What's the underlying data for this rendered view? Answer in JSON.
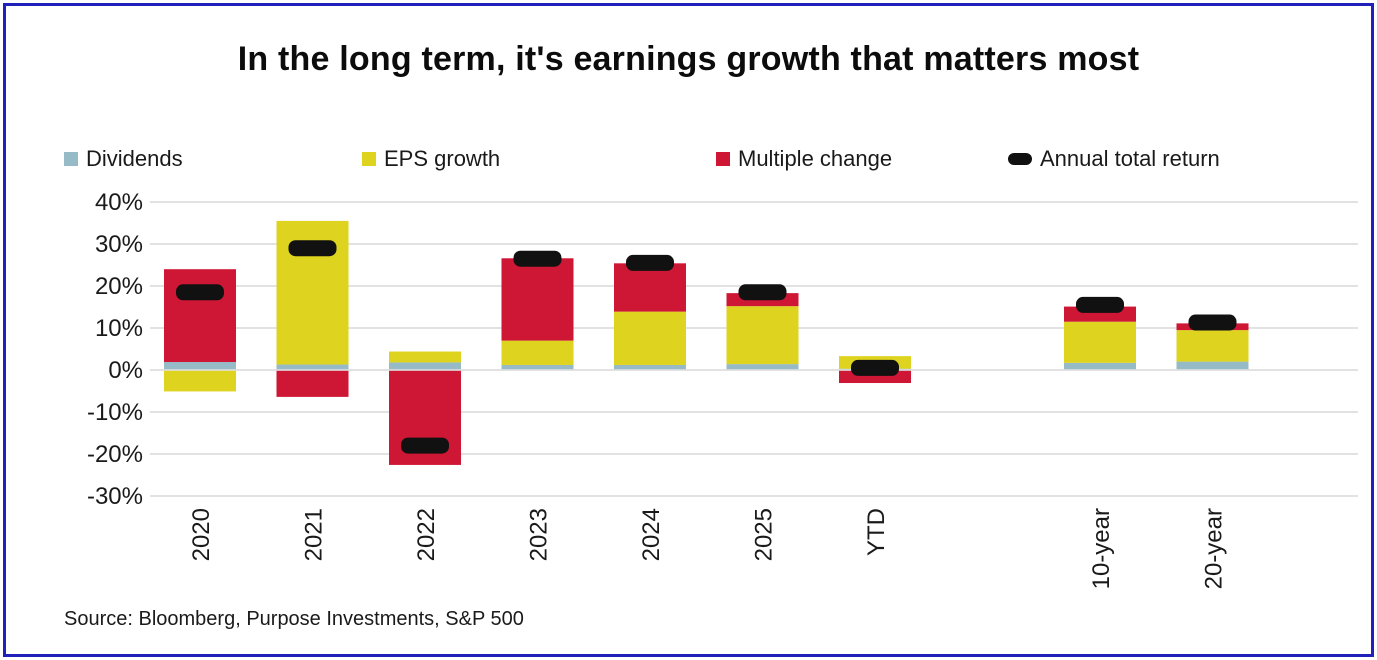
{
  "frame": {
    "border_color": "#2020bb",
    "background": "#ffffff"
  },
  "title": "In the long term, it's earnings growth that matters most",
  "legend": {
    "items": [
      {
        "label": "Dividends",
        "color": "#97bac7",
        "shape": "square"
      },
      {
        "label": "EPS growth",
        "color": "#ded31f",
        "shape": "square"
      },
      {
        "label": "Multiple change",
        "color": "#ce1635",
        "shape": "square"
      },
      {
        "label": "Annual total return",
        "color": "#111111",
        "shape": "pill"
      }
    ]
  },
  "source": "Source: Bloomberg, Purpose Investments, S&P 500",
  "chart_data": {
    "type": "bar",
    "stacked": true,
    "title": "In the long term, it's earnings growth that matters most",
    "xlabel": "",
    "ylabel": "",
    "categories": [
      "2020",
      "2021",
      "2022",
      "2023",
      "2024",
      "2025",
      "YTD",
      "10-year",
      "20-year"
    ],
    "slot_indices": [
      0,
      1,
      2,
      3,
      4,
      5,
      6,
      8,
      9
    ],
    "series": [
      {
        "name": "Dividends",
        "color": "#97bac7",
        "values": [
          1.9,
          1.3,
          1.8,
          1.2,
          1.2,
          1.4,
          0.3,
          1.7,
          2.0
        ]
      },
      {
        "name": "EPS growth",
        "color": "#ded31f",
        "values": [
          -5.1,
          34.2,
          2.6,
          5.8,
          12.7,
          13.8,
          3.0,
          9.8,
          7.5
        ]
      },
      {
        "name": "Multiple change",
        "color": "#ce1635",
        "values": [
          22.1,
          -6.4,
          -22.6,
          19.6,
          11.5,
          3.1,
          -3.1,
          3.6,
          1.6
        ]
      }
    ],
    "markers": {
      "name": "Annual total return",
      "color": "#111111",
      "values": [
        18.5,
        29.0,
        -18.0,
        26.5,
        25.5,
        18.5,
        0.5,
        15.5,
        11.3
      ]
    },
    "y_ticks": [
      40,
      30,
      20,
      10,
      0,
      -10,
      -20,
      -30
    ],
    "tick_suffix": "%",
    "ylim": [
      -30,
      40
    ],
    "grid": "horizontal",
    "colors": {
      "grid": "#d9d9d9",
      "tick_text": "#1a1a1a"
    },
    "legend_position": "top"
  }
}
